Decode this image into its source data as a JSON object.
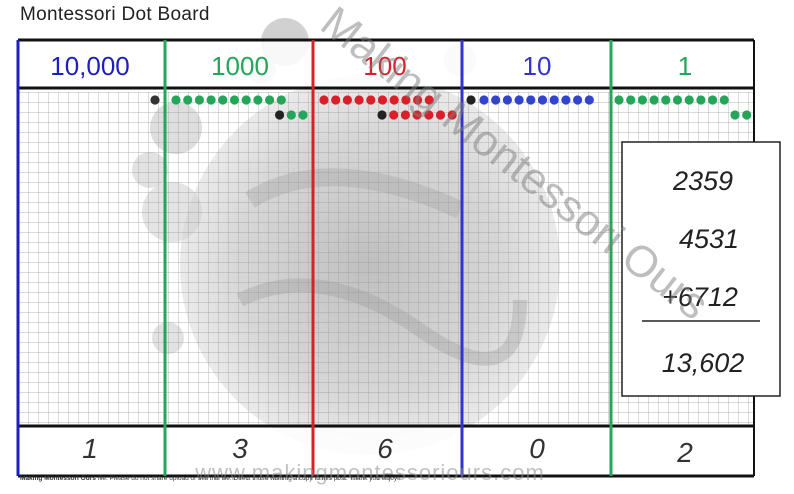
{
  "title": "Montessori Dot Board",
  "watermark": "Making Montessori Ours",
  "url": "www.makingmontessoriours.com",
  "footer": {
    "brand": "Making Montessori Ours",
    "notice": "file. Please do not share upload or sell this file. Direct those wishing a copy to this post. Thank you enjoy!!"
  },
  "columns": [
    {
      "key": "tenthousands",
      "header": "10,000",
      "color": "#1f1fbf",
      "result": "1"
    },
    {
      "key": "thousands",
      "header": "1000",
      "color": "#23a65a",
      "result": "3"
    },
    {
      "key": "hundreds",
      "header": "100",
      "color": "#d9202a",
      "result": "6"
    },
    {
      "key": "tens",
      "header": "10",
      "color": "#3333cc",
      "result": "0"
    },
    {
      "key": "ones",
      "header": "1",
      "color": "#23a65a",
      "result": "2"
    }
  ],
  "problem": {
    "addend1": "2359",
    "addend2": "4531",
    "addend3": "+6712",
    "sum": "13,602"
  },
  "dots": {
    "tenthousands": {
      "row1_color": "#333333",
      "row1_count": 1,
      "row2": []
    },
    "thousands": {
      "row1_color": "#23a65a",
      "row1_count": 10,
      "row2": [
        "#222222",
        "#23a65a",
        "#23a65a"
      ]
    },
    "hundreds": {
      "row1_color": "#d9202a",
      "row1_count": 10,
      "row2": [
        "#222222",
        "#d9202a",
        "#d9202a",
        "#d9202a",
        "#d9202a",
        "#d9202a",
        "#d9202a"
      ]
    },
    "tens": {
      "row1_lead_color": "#222222",
      "row1_color": "#3344cc",
      "row1_count": 10,
      "row2": []
    },
    "ones": {
      "row1_color": "#23a65a",
      "row1_count": 10,
      "row2": [
        "#23a65a",
        "#23a65a"
      ]
    }
  }
}
